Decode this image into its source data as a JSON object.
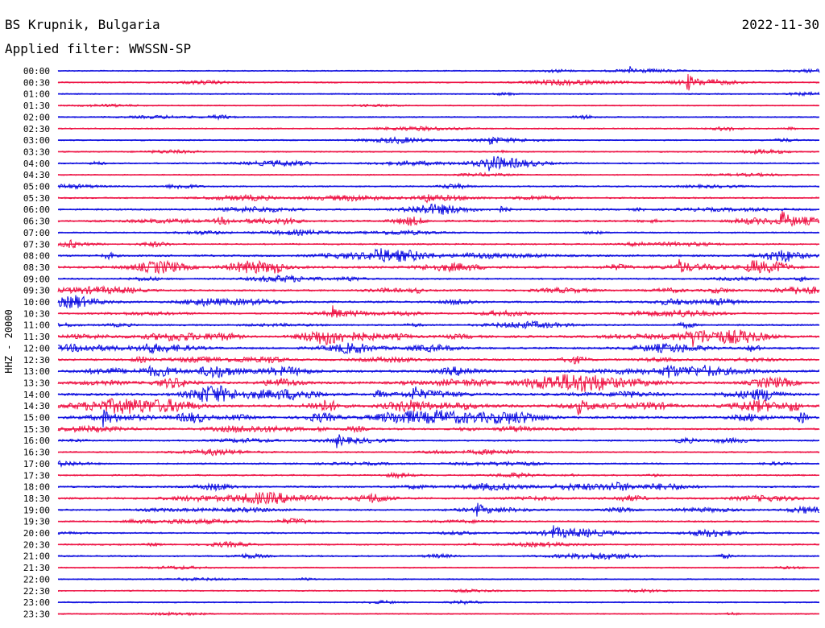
{
  "header": {
    "station": "BS Krupnik, Bulgaria",
    "date": "2022-11-30",
    "filter": "Applied filter: WWSSN-SP"
  },
  "colors": {
    "blue": "#1010e0",
    "red": "#ee1546",
    "text": "#000000"
  },
  "chart_data": {
    "type": "line",
    "ylabel": "HHZ - 20000",
    "row_labels": [
      "00:00",
      "00:30",
      "01:00",
      "01:30",
      "02:00",
      "02:30",
      "03:00",
      "03:30",
      "04:00",
      "04:30",
      "05:00",
      "05:30",
      "06:00",
      "06:30",
      "07:00",
      "07:30",
      "08:00",
      "08:30",
      "09:00",
      "09:30",
      "10:00",
      "10:30",
      "11:00",
      "11:30",
      "12:00",
      "12:30",
      "13:00",
      "13:30",
      "14:00",
      "14:30",
      "15:00",
      "15:30",
      "16:00",
      "16:30",
      "17:00",
      "17:30",
      "18:00",
      "18:30",
      "19:00",
      "19:30",
      "20:00",
      "20:30",
      "21:00",
      "21:30",
      "22:00",
      "22:30",
      "23:00",
      "23:30"
    ],
    "row_colors": [
      "blue",
      "red"
    ],
    "activity": [
      0.15,
      0.25,
      0.15,
      0.15,
      0.2,
      0.2,
      0.2,
      0.2,
      0.25,
      0.15,
      0.3,
      0.35,
      0.5,
      0.6,
      0.3,
      0.35,
      0.6,
      0.8,
      0.45,
      0.55,
      0.55,
      0.4,
      0.45,
      0.75,
      0.6,
      0.6,
      0.85,
      0.9,
      0.95,
      0.95,
      0.85,
      0.55,
      0.35,
      0.3,
      0.35,
      0.3,
      0.5,
      0.55,
      0.45,
      0.35,
      0.35,
      0.3,
      0.35,
      0.15,
      0.15,
      0.15,
      0.15,
      0.15
    ],
    "events": [
      {
        "row": 0,
        "minute": 22.5,
        "amp": 0.8
      },
      {
        "row": 1,
        "minute": 24.8,
        "amp": 1.5
      },
      {
        "row": 6,
        "minute": 17.0,
        "amp": 0.9
      },
      {
        "row": 8,
        "minute": 17.0,
        "amp": 2.6
      },
      {
        "row": 11,
        "minute": 14.5,
        "amp": 1.2
      },
      {
        "row": 13,
        "minute": 28.5,
        "amp": 2.0
      },
      {
        "row": 16,
        "minute": 12.5,
        "amp": 2.2
      },
      {
        "row": 17,
        "minute": 24.5,
        "amp": 1.3
      },
      {
        "row": 21,
        "minute": 10.8,
        "amp": 1.3
      },
      {
        "row": 23,
        "minute": 25.0,
        "amp": 2.6
      },
      {
        "row": 24,
        "minute": 3.5,
        "amp": 1.2
      },
      {
        "row": 26,
        "minute": 25.5,
        "amp": 1.5
      },
      {
        "row": 28,
        "minute": 14.0,
        "amp": 1.6
      },
      {
        "row": 29,
        "minute": 20.5,
        "amp": 1.4
      },
      {
        "row": 30,
        "minute": 1.8,
        "amp": 1.5
      },
      {
        "row": 32,
        "minute": 11.0,
        "amp": 1.2
      },
      {
        "row": 38,
        "minute": 16.5,
        "amp": 1.2
      },
      {
        "row": 40,
        "minute": 19.5,
        "amp": 1.2
      }
    ]
  }
}
